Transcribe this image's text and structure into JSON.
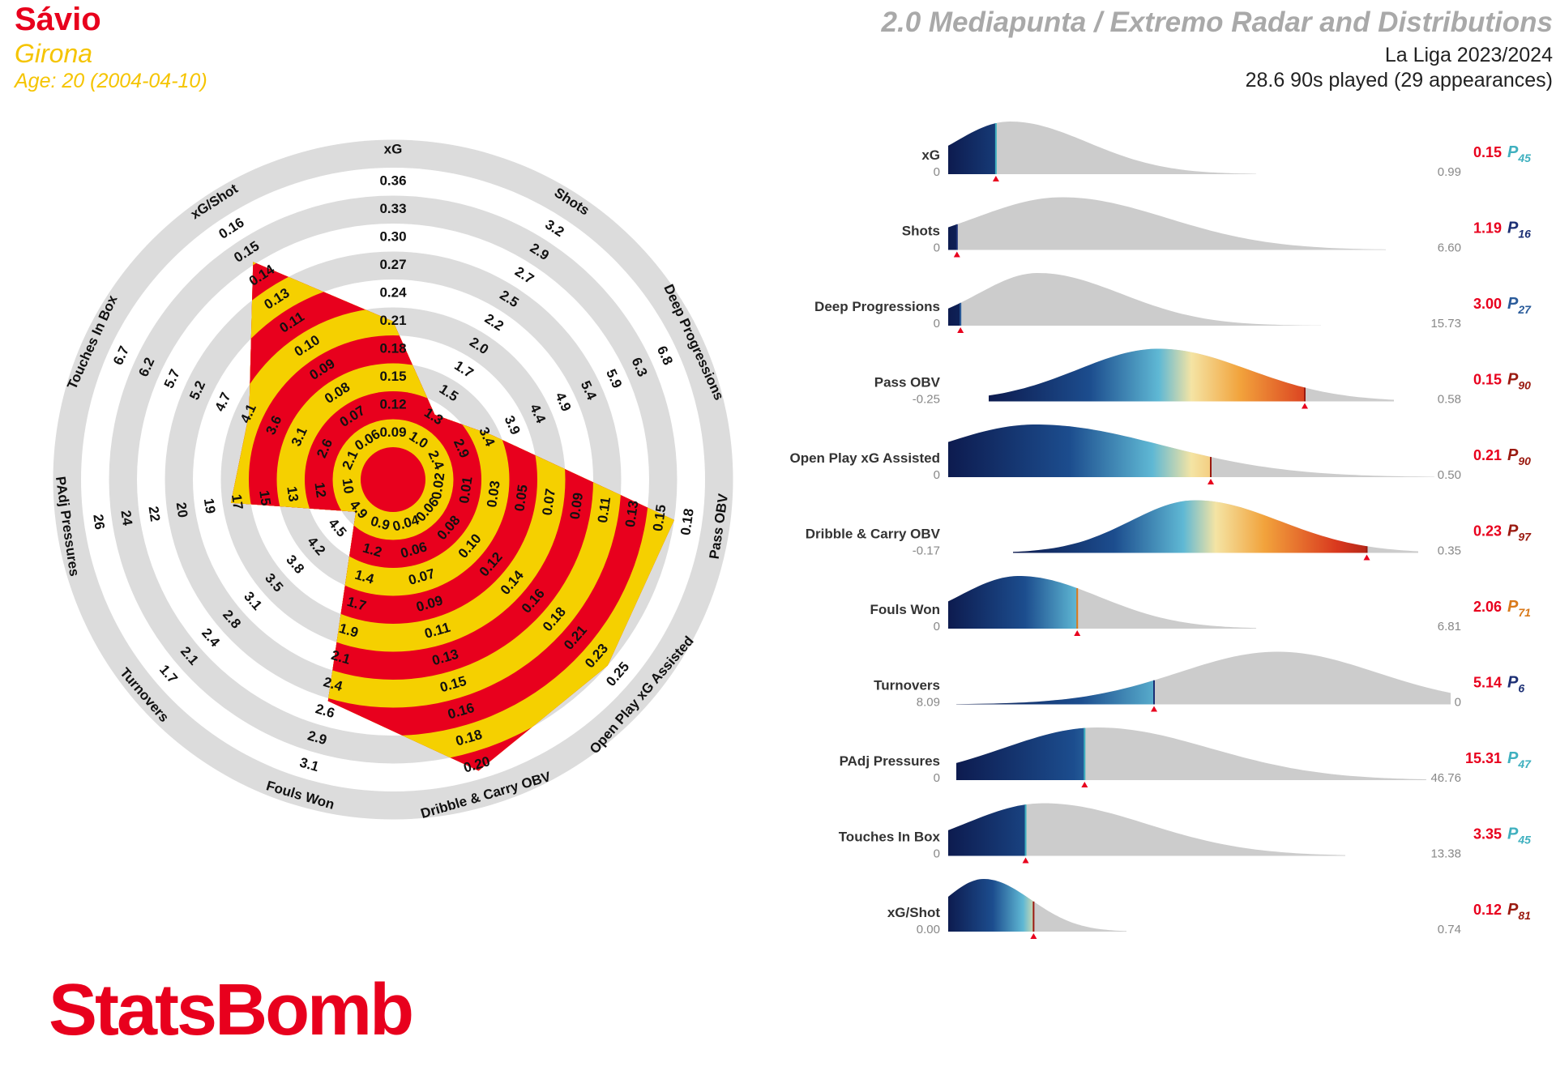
{
  "header": {
    "player": "Sávio",
    "team": "Girona",
    "age": "Age: 20 (2004-04-10)",
    "title": "2.0 Mediapunta / Extremo Radar and Distributions",
    "league": "La Liga 2023/2024",
    "played": "28.6 90s played (29 appearances)"
  },
  "colors": {
    "red": "#e8001d",
    "yellow": "#f5d000",
    "ring_grey": "#dcdcdc",
    "dist_grey": "#cccccc"
  },
  "chart_data": [
    {
      "type": "radar",
      "metrics": [
        {
          "name": "xG",
          "ticks": [
            "0.09",
            "0.12",
            "0.15",
            "0.18",
            "0.21",
            "0.24",
            "0.27",
            "0.30",
            "0.33",
            "0.36"
          ],
          "value": 0.15,
          "percentile": 45
        },
        {
          "name": "Shots",
          "ticks": [
            "1.0",
            "1.3",
            "1.5",
            "1.7",
            "2.0",
            "2.2",
            "2.5",
            "2.7",
            "2.9",
            "3.2"
          ],
          "value": 1.19,
          "percentile": 16
        },
        {
          "name": "Deep Progressions",
          "ticks": [
            "2.4",
            "2.9",
            "3.4",
            "3.9",
            "4.4",
            "4.9",
            "5.4",
            "5.9",
            "6.3",
            "6.8"
          ],
          "value": 3.0,
          "percentile": 27
        },
        {
          "name": "Pass OBV",
          "ticks": [
            "0.02",
            "0.01",
            "0.03",
            "0.05",
            "0.07",
            "0.09",
            "0.11",
            "0.13",
            "0.15",
            "0.18"
          ],
          "value": 0.15,
          "percentile": 90
        },
        {
          "name": "Open Play xG Assisted",
          "ticks": [
            "0.06",
            "0.08",
            "0.10",
            "0.12",
            "0.14",
            "0.16",
            "0.18",
            "0.21",
            "0.23",
            "0.25"
          ],
          "value": 0.21,
          "percentile": 90
        },
        {
          "name": "Dribble & Carry OBV",
          "ticks": [
            "0.04",
            "0.06",
            "0.07",
            "0.09",
            "0.11",
            "0.13",
            "0.15",
            "0.16",
            "0.18",
            "0.20"
          ],
          "value": 0.23,
          "percentile": 97
        },
        {
          "name": "Fouls Won",
          "ticks": [
            "0.9",
            "1.2",
            "1.4",
            "1.7",
            "1.9",
            "2.1",
            "2.4",
            "2.6",
            "2.9",
            "3.1"
          ],
          "value": 2.06,
          "percentile": 71
        },
        {
          "name": "Turnovers",
          "ticks": [
            "4.9",
            "4.5",
            "4.2",
            "3.8",
            "3.5",
            "3.1",
            "2.8",
            "2.4",
            "2.1",
            "1.7"
          ],
          "value": 5.14,
          "percentile": 6
        },
        {
          "name": "PAdj Pressures",
          "ticks": [
            "10",
            "12",
            "13",
            "15",
            "17",
            "19",
            "20",
            "22",
            "24",
            "26"
          ],
          "value": 15.31,
          "percentile": 47
        },
        {
          "name": "Touches In Box",
          "ticks": [
            "2.1",
            "2.6",
            "3.1",
            "3.6",
            "4.1",
            "4.7",
            "5.2",
            "5.7",
            "6.2",
            "6.7"
          ],
          "value": 3.35,
          "percentile": 45
        },
        {
          "name": "xG/Shot",
          "ticks": [
            "0.06",
            "0.07",
            "0.08",
            "0.09",
            "0.10",
            "0.11",
            "0.13",
            "0.14",
            "0.15",
            "0.16"
          ],
          "value": 0.12,
          "percentile": 81
        }
      ]
    },
    {
      "type": "area",
      "title": "distributions",
      "series": [
        {
          "name": "xG",
          "min": "0",
          "max": "0.99",
          "value": "0.15",
          "percentile": "45"
        },
        {
          "name": "Shots",
          "min": "0",
          "max": "6.60",
          "value": "1.19",
          "percentile": "16"
        },
        {
          "name": "Deep Progressions",
          "min": "0",
          "max": "15.73",
          "value": "3.00",
          "percentile": "27"
        },
        {
          "name": "Pass OBV",
          "min": "-0.25",
          "max": "0.58",
          "value": "0.15",
          "percentile": "90"
        },
        {
          "name": "Open Play xG Assisted",
          "min": "0",
          "max": "0.50",
          "value": "0.21",
          "percentile": "90"
        },
        {
          "name": "Dribble & Carry OBV",
          "min": "-0.17",
          "max": "0.35",
          "value": "0.23",
          "percentile": "97"
        },
        {
          "name": "Fouls Won",
          "min": "0",
          "max": "6.81",
          "value": "2.06",
          "percentile": "71"
        },
        {
          "name": "Turnovers",
          "min": "8.09",
          "max": "0",
          "value": "5.14",
          "percentile": "6"
        },
        {
          "name": "PAdj Pressures",
          "min": "0",
          "max": "46.76",
          "value": "15.31",
          "percentile": "47"
        },
        {
          "name": "Touches In Box",
          "min": "0",
          "max": "13.38",
          "value": "3.35",
          "percentile": "45"
        },
        {
          "name": "xG/Shot",
          "min": "0.00",
          "max": "0.74",
          "value": "0.12",
          "percentile": "81"
        }
      ]
    }
  ],
  "logo": {
    "text": "StatsBomb"
  }
}
